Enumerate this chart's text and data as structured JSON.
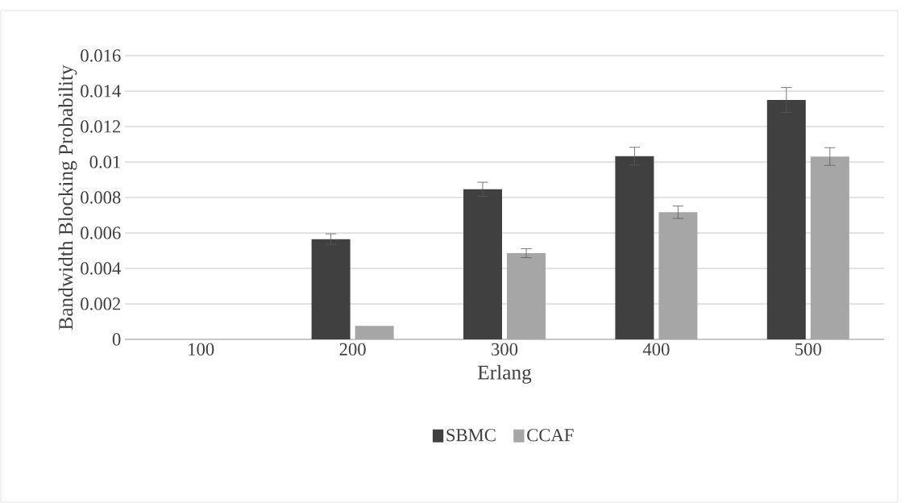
{
  "chart_data": {
    "type": "bar",
    "xlabel": "Erlang",
    "ylabel": "Bandwidth Blocking Probability",
    "categories": [
      "100",
      "200",
      "300",
      "400",
      "500"
    ],
    "series": [
      {
        "name": "SBMC",
        "color": "#404040",
        "values": [
          0,
          0.00565,
          0.00846,
          0.01033,
          0.0135
        ],
        "errors": [
          null,
          0.0003,
          0.0004,
          0.0005,
          0.0007
        ]
      },
      {
        "name": "CCAF",
        "color": "#a6a6a6",
        "values": [
          0,
          0.00076,
          0.00486,
          0.00717,
          0.01031
        ],
        "errors": [
          null,
          null,
          0.00025,
          0.00035,
          0.0005
        ]
      }
    ],
    "ylim": [
      0,
      0.016
    ],
    "yticks": [
      0,
      0.002,
      0.004,
      0.006,
      0.008,
      0.01,
      0.012,
      0.014,
      0.016
    ],
    "grid": "y",
    "legend": "bottom"
  }
}
